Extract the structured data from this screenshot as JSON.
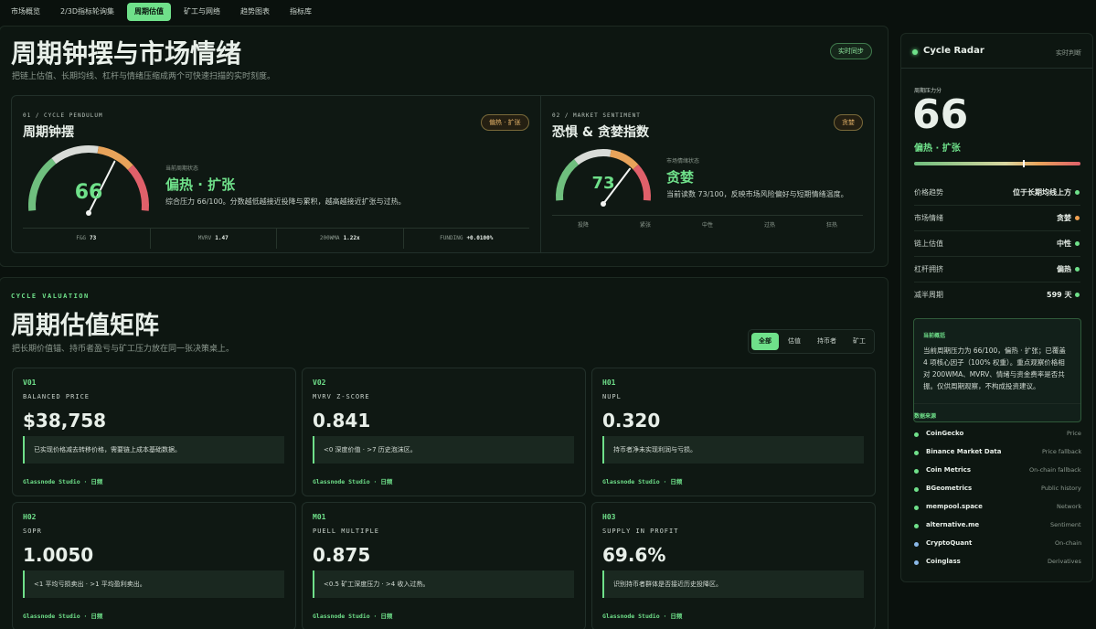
{
  "nav": {
    "tabs": [
      "市场概览",
      "2/3D指标轮询集",
      "周期估值",
      "矿工与网络",
      "趋势图表",
      "指标库"
    ],
    "active": 2
  },
  "header": {
    "title": "周期钟摆与市场情绪",
    "subtitle": "把链上估值、长期均线、杠杆与情绪压缩成两个可快速扫描的实时刻度。",
    "badge": "实时同步"
  },
  "gauges": [
    {
      "eyebrow": "01 / CYCLE PENDULUM",
      "title": "周期钟摆",
      "badge": "偏热 · 扩张",
      "value": 66,
      "range": [
        0,
        100
      ],
      "state_label": "当前周期状态",
      "state": "偏热 · 扩张",
      "description": "综合压力 66/100。分数越低越接近投降与累积，越高越接近扩张与过热。",
      "metrics": [
        {
          "label": "F&G",
          "value": "73"
        },
        {
          "label": "MVRV",
          "value": "1.47"
        },
        {
          "label": "200WMA",
          "value": "1.22x"
        },
        {
          "label": "FUNDING",
          "value": "+0.0100%"
        }
      ]
    },
    {
      "eyebrow": "02 / MARKET SENTIMENT",
      "title": "恐惧 & 贪婪指数",
      "badge": "贪婪",
      "value": 73,
      "range": [
        0,
        100
      ],
      "state_label": "市场情绪状态",
      "state": "贪婪",
      "description": "当前读数 73/100，反映市场风险偏好与短期情绪温度。",
      "scale": [
        "投降",
        "紧张",
        "中性",
        "过热",
        "狂热"
      ]
    }
  ],
  "valuation": {
    "eyebrow": "CYCLE VALUATION",
    "title": "周期估值矩阵",
    "subtitle": "把长期价值锚、持币者盈亏与矿工压力放在同一张决策桌上。",
    "filters": [
      "全部",
      "估值",
      "持币者",
      "矿工"
    ],
    "active_filter": 0,
    "cards": [
      {
        "code": "V01",
        "name": "BALANCED PRICE",
        "value": "$38,758",
        "description": "已实现价格减去转移价格，需要链上成本基础数据。",
        "source": "Glassnode Studio · 日频"
      },
      {
        "code": "V02",
        "name": "MVRV Z-SCORE",
        "value": "0.841",
        "description": "<0 深度价值 · >7 历史泡沫区。",
        "source": "Glassnode Studio · 日频"
      },
      {
        "code": "H01",
        "name": "NUPL",
        "value": "0.320",
        "description": "持币者净未实现利润与亏损。",
        "source": "Glassnode Studio · 日频"
      },
      {
        "code": "H02",
        "name": "SOPR",
        "value": "1.0050",
        "description": "<1 平均亏损卖出 · >1 平均盈利卖出。",
        "source": "Glassnode Studio · 日频"
      },
      {
        "code": "M01",
        "name": "PUELL MULTIPLE",
        "value": "0.875",
        "description": "<0.5 矿工深度压力 · >4 收入过热。",
        "source": "Glassnode Studio · 日频"
      },
      {
        "code": "H03",
        "name": "SUPPLY IN PROFIT",
        "value": "69.6%",
        "description": "识别持币者群体是否接近历史投降区。",
        "source": "Glassnode Studio · 日频"
      }
    ]
  },
  "radar": {
    "title": "Cycle Radar",
    "status": "实时判断",
    "score_label": "周期压力分",
    "score": 66,
    "range": [
      0,
      100
    ],
    "state": "偏热 · 扩张",
    "rows": [
      {
        "label": "价格趋势",
        "value": "位于长期均线上方",
        "color": "#6fe08a"
      },
      {
        "label": "市场情绪",
        "value": "贪婪",
        "color": "#f0a050"
      },
      {
        "label": "链上估值",
        "value": "中性",
        "color": "#6fe08a"
      },
      {
        "label": "杠杆拥挤",
        "value": "偏热",
        "color": "#6fe08a"
      },
      {
        "label": "减半周期",
        "value": "599 天",
        "color": "#6fe08a"
      }
    ],
    "summary": {
      "title": "当前概括",
      "text": "当前周期压力为 66/100，偏热 · 扩张；已覆盖 4 项核心因子（100% 权重）。重点观察价格相对 200WMA、MVRV、情绪与资金费率是否共振。仅供周期观察，不构成投资建议。"
    },
    "sources_title": "数据来源",
    "sources": [
      {
        "name": "CoinGecko",
        "type": "Price",
        "color": "#6fe08a"
      },
      {
        "name": "Binance Market Data",
        "type": "Price fallback",
        "color": "#6fe08a"
      },
      {
        "name": "Coin Metrics",
        "type": "On-chain fallback",
        "color": "#6fe08a"
      },
      {
        "name": "BGeometrics",
        "type": "Public history",
        "color": "#6fe08a"
      },
      {
        "name": "mempool.space",
        "type": "Network",
        "color": "#6fe08a"
      },
      {
        "name": "alternative.me",
        "type": "Sentiment",
        "color": "#6fe08a"
      },
      {
        "name": "CryptoQuant",
        "type": "On-chain",
        "color": "#8ab8e8"
      },
      {
        "name": "Coinglass",
        "type": "Derivatives",
        "color": "#8ab8e8"
      }
    ]
  }
}
